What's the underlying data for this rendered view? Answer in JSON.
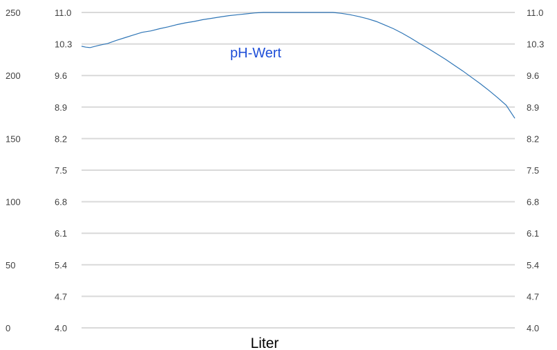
{
  "chart_data": {
    "type": "line",
    "title": "",
    "xlabel": "Liter",
    "ylabel": "",
    "grid": true,
    "left_outer_axis": {
      "ticks": [
        "250",
        "200",
        "150",
        "100",
        "50",
        "0"
      ],
      "ylim": [
        0,
        250
      ]
    },
    "left_axis": {
      "ticks": [
        "11.0",
        "10.3",
        "9.6",
        "8.9",
        "8.2",
        "7.5",
        "6.8",
        "6.1",
        "5.4",
        "4.7",
        "4.0"
      ],
      "ylim": [
        4.0,
        11.0
      ]
    },
    "right_axis": {
      "ticks": [
        "11.0",
        "10.3",
        "9.6",
        "8.9",
        "8.2",
        "7.5",
        "6.8",
        "6.1",
        "5.4",
        "4.7",
        "4.0"
      ],
      "ylim": [
        4.0,
        11.0
      ]
    },
    "series": [
      {
        "name": "pH-Wert",
        "color": "#2e75b6",
        "label_color": "#1f4fd8",
        "x": [
          0,
          0.01,
          0.02,
          0.04,
          0.06,
          0.08,
          0.1,
          0.12,
          0.14,
          0.16,
          0.18,
          0.2,
          0.22,
          0.24,
          0.26,
          0.28,
          0.3,
          0.32,
          0.34,
          0.36,
          0.38,
          0.4,
          0.42,
          0.45,
          0.48,
          0.5,
          0.52,
          0.55,
          0.58,
          0.6,
          0.62,
          0.64,
          0.66,
          0.68,
          0.7,
          0.72,
          0.74,
          0.76,
          0.78,
          0.8,
          0.82,
          0.84,
          0.86,
          0.88,
          0.9,
          0.92,
          0.94,
          0.96,
          0.98,
          1.0
        ],
        "y": [
          10.25,
          10.23,
          10.22,
          10.27,
          10.31,
          10.38,
          10.44,
          10.5,
          10.56,
          10.59,
          10.64,
          10.68,
          10.73,
          10.77,
          10.8,
          10.84,
          10.87,
          10.9,
          10.93,
          10.95,
          10.97,
          10.99,
          11.0,
          11.0,
          11.0,
          11.0,
          11.0,
          11.0,
          11.0,
          10.98,
          10.95,
          10.91,
          10.86,
          10.8,
          10.72,
          10.64,
          10.54,
          10.43,
          10.31,
          10.2,
          10.08,
          9.96,
          9.83,
          9.7,
          9.56,
          9.42,
          9.27,
          9.11,
          8.94,
          8.65
        ]
      }
    ]
  }
}
